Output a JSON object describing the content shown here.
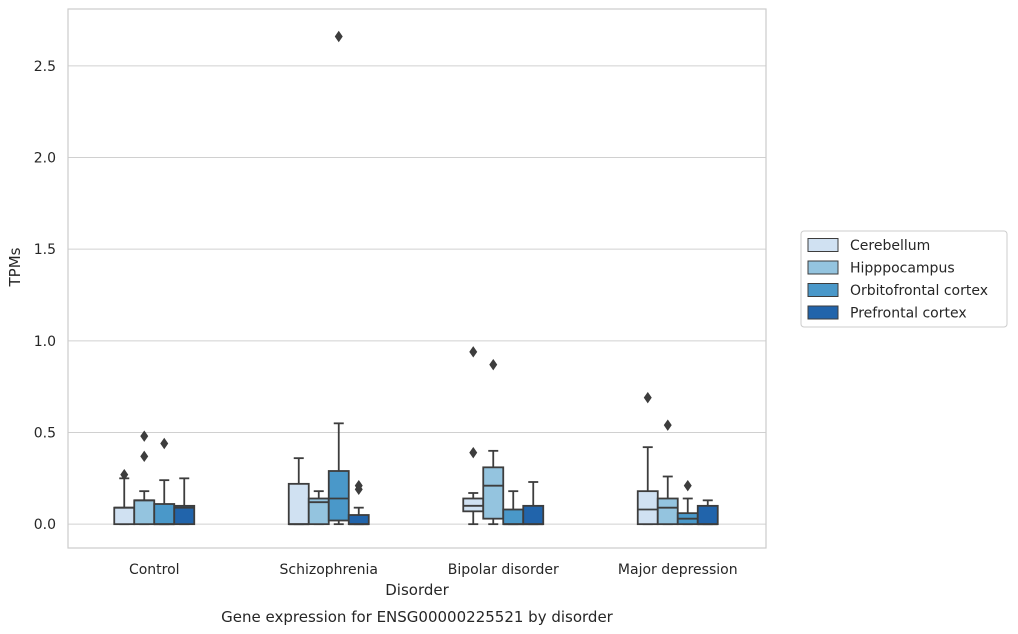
{
  "chart_data": {
    "type": "box",
    "title": "",
    "xlabel": "Disorder",
    "ylabel": "TPMs",
    "caption": "Gene expression for ENSG00000225521 by disorder",
    "categories": [
      "Control",
      "Schizophrenia",
      "Bipolar disorder",
      "Major depression"
    ],
    "yticks": [
      0.0,
      0.5,
      1.0,
      1.5,
      2.0,
      2.5
    ],
    "ytick_labels": [
      "0.0",
      "0.5",
      "1.0",
      "1.5",
      "2.0",
      "2.5"
    ],
    "ylim": [
      -0.13,
      2.81
    ],
    "grid": "horizontal",
    "legend_position": "outside-right",
    "series": [
      {
        "name": "Cerebellum",
        "color": "#d0e1f2",
        "boxes": [
          {
            "whislo": 0.0,
            "q1": 0.0,
            "med": 0.09,
            "q3": 0.09,
            "whishi": 0.25,
            "fliers": [
              0.27
            ]
          },
          {
            "whislo": 0.0,
            "q1": 0.0,
            "med": 0.0,
            "q3": 0.22,
            "whishi": 0.36,
            "fliers": []
          },
          {
            "whislo": 0.0,
            "q1": 0.07,
            "med": 0.1,
            "q3": 0.14,
            "whishi": 0.17,
            "fliers": [
              0.39,
              0.94
            ]
          },
          {
            "whislo": 0.0,
            "q1": 0.0,
            "med": 0.08,
            "q3": 0.18,
            "whishi": 0.42,
            "fliers": [
              0.69
            ]
          }
        ]
      },
      {
        "name": "Hipppocampus",
        "color": "#94c4df",
        "boxes": [
          {
            "whislo": 0.0,
            "q1": 0.0,
            "med": 0.13,
            "q3": 0.13,
            "whishi": 0.18,
            "fliers": [
              0.37,
              0.48
            ]
          },
          {
            "whislo": 0.0,
            "q1": 0.0,
            "med": 0.12,
            "q3": 0.14,
            "whishi": 0.18,
            "fliers": []
          },
          {
            "whislo": 0.0,
            "q1": 0.03,
            "med": 0.21,
            "q3": 0.31,
            "whishi": 0.4,
            "fliers": [
              0.87
            ]
          },
          {
            "whislo": 0.0,
            "q1": 0.0,
            "med": 0.09,
            "q3": 0.14,
            "whishi": 0.26,
            "fliers": [
              0.54
            ]
          }
        ]
      },
      {
        "name": "Orbitofrontal cortex",
        "color": "#4a98c9",
        "boxes": [
          {
            "whislo": 0.0,
            "q1": 0.0,
            "med": 0.0,
            "q3": 0.11,
            "whishi": 0.24,
            "fliers": [
              0.44
            ]
          },
          {
            "whislo": 0.0,
            "q1": 0.02,
            "med": 0.14,
            "q3": 0.29,
            "whishi": 0.55,
            "fliers": [
              2.66
            ]
          },
          {
            "whislo": 0.0,
            "q1": 0.0,
            "med": 0.0,
            "q3": 0.08,
            "whishi": 0.18,
            "fliers": []
          },
          {
            "whislo": 0.0,
            "q1": 0.0,
            "med": 0.03,
            "q3": 0.06,
            "whishi": 0.14,
            "fliers": [
              0.21
            ]
          }
        ]
      },
      {
        "name": "Prefrontal cortex",
        "color": "#2164ab",
        "boxes": [
          {
            "whislo": 0.0,
            "q1": 0.0,
            "med": 0.09,
            "q3": 0.1,
            "whishi": 0.25,
            "fliers": []
          },
          {
            "whislo": 0.0,
            "q1": 0.0,
            "med": 0.0,
            "q3": 0.05,
            "whishi": 0.09,
            "fliers": [
              0.19,
              0.21
            ]
          },
          {
            "whislo": 0.0,
            "q1": 0.0,
            "med": 0.0,
            "q3": 0.1,
            "whishi": 0.23,
            "fliers": []
          },
          {
            "whislo": 0.0,
            "q1": 0.0,
            "med": 0.0,
            "q3": 0.1,
            "whishi": 0.13,
            "fliers": []
          }
        ]
      }
    ]
  }
}
